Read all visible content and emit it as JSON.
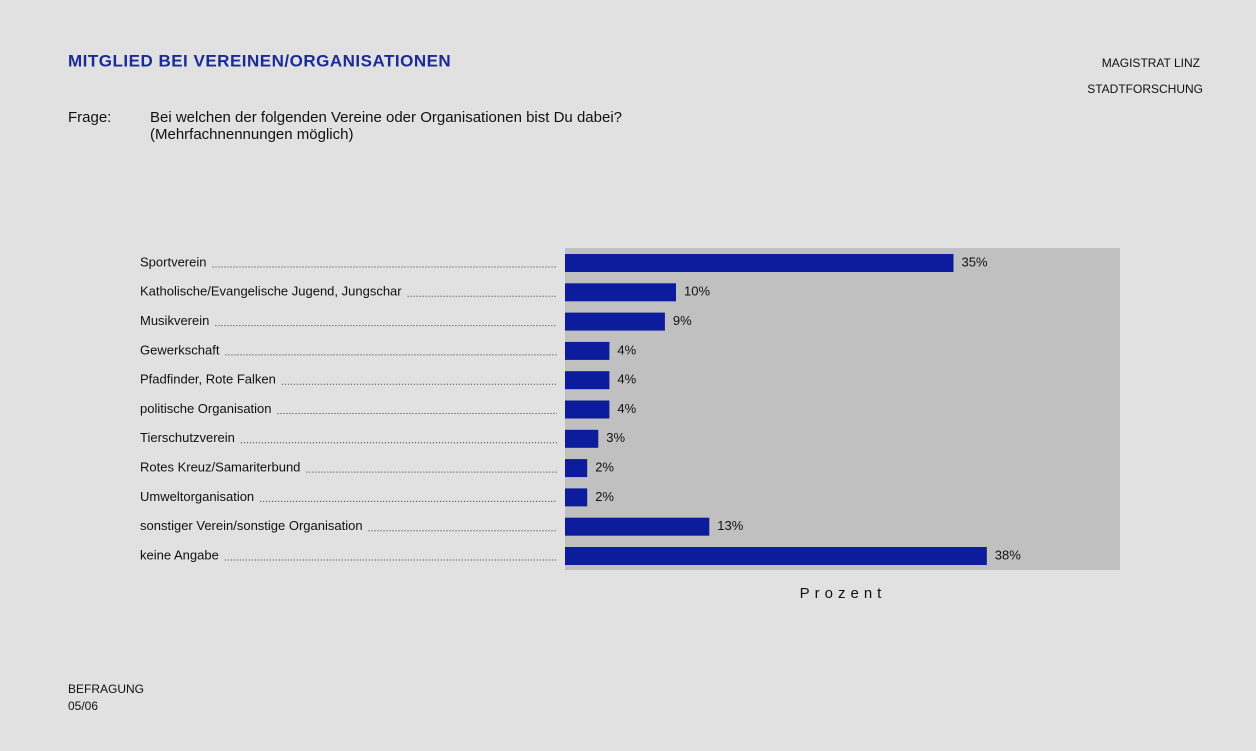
{
  "chart_data": {
    "type": "bar",
    "orientation": "horizontal",
    "title": "MITGLIED BEI VEREINEN/ORGANISATIONEN",
    "source": [
      "MAGISTRAT LINZ",
      "STADTFORSCHUNG"
    ],
    "question_label": "Frage:",
    "question": "Bei welchen der folgenden Vereine oder Organisationen bist Du dabei?",
    "question_note": "(Mehrfachnennungen möglich)",
    "categories": [
      "Sportverein",
      "Katholische/Evangelische Jugend, Jungschar",
      "Musikverein",
      "Gewerkschaft",
      "Pfadfinder, Rote Falken",
      "politische Organisation",
      "Tierschutzverein",
      "Rotes Kreuz/Samariterbund",
      "Umweltorganisation",
      "sonstiger Verein/sonstige Organisation",
      "keine Angabe"
    ],
    "values": [
      35,
      10,
      9,
      4,
      4,
      4,
      3,
      2,
      2,
      13,
      38
    ],
    "value_labels": [
      "35%",
      "10%",
      "9%",
      "4%",
      "4%",
      "4%",
      "3%",
      "2%",
      "2%",
      "13%",
      "38%"
    ],
    "color": "#0c1c9c",
    "xlim": [
      0,
      50
    ],
    "xlabel": "Prozent",
    "footer": [
      "BEFRAGUNG",
      "05/06"
    ]
  }
}
